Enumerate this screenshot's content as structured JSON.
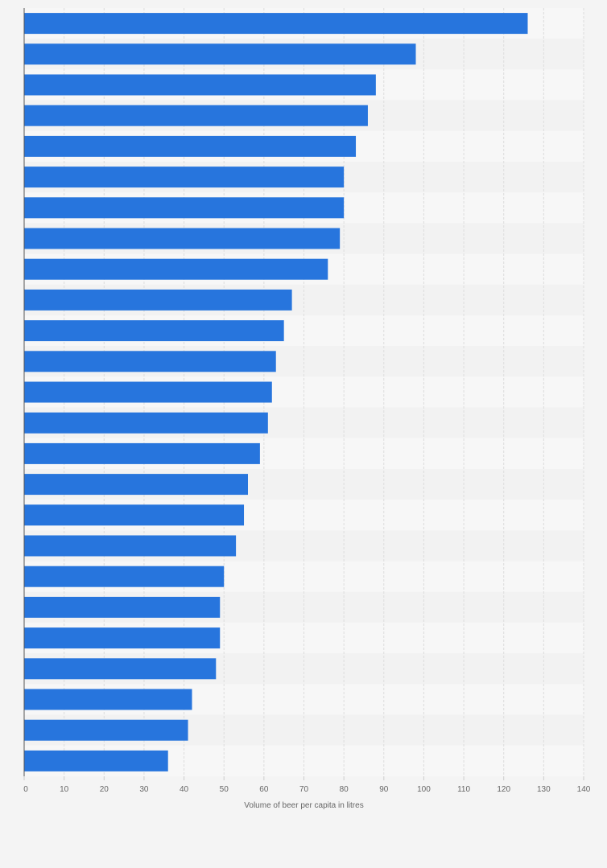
{
  "chart_data": {
    "type": "bar",
    "orientation": "horizontal",
    "values": [
      126,
      98,
      88,
      86,
      83,
      80,
      80,
      79,
      76,
      67,
      65,
      63,
      62,
      61,
      59,
      56,
      55,
      53,
      50,
      49,
      49,
      48,
      42,
      41,
      36
    ],
    "xlabel": "Volume of beer per capita in litres",
    "xlim": [
      0,
      140
    ],
    "xticks": [
      0,
      10,
      20,
      30,
      40,
      50,
      60,
      70,
      80,
      90,
      100,
      110,
      120,
      130,
      140
    ],
    "grid": true,
    "colors": {
      "bar": "#2775dd",
      "band_even": "#f7f7f7",
      "band_odd": "#f2f2f2",
      "gridline": "#dddddd",
      "axis": "#555555",
      "tick_text": "#666666"
    }
  }
}
